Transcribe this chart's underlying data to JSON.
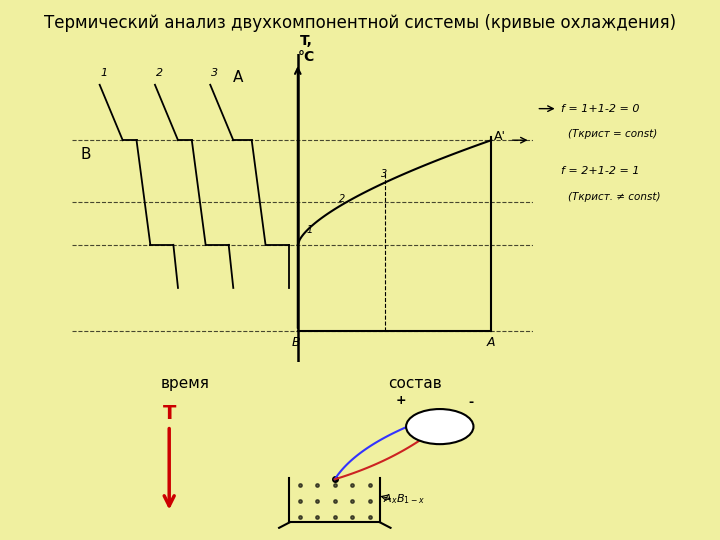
{
  "title": "Термический анализ двухкомпонентной системы (кривые охлаждения)",
  "title_fontsize": 12,
  "bg_outer": "#f0f0a0",
  "bg_title": "#ffffff",
  "bg_main_panel": "#dcdcdc",
  "bg_label_green": "#90ee90",
  "bg_bottom_panel": "#ffffff",
  "label_vremya": "время",
  "label_sostav": "состав",
  "label_A_left": "A",
  "label_B_left": "B",
  "label_T_axis": "T,\n°C",
  "ann1_line1": "f = 1+1-2 = 0",
  "ann1_line2": "(Tкрист = const)",
  "ann2_line1": "f = 2+1-2 = 1",
  "ann2_line2": "(Tкрист. ≠ const)",
  "label_T_arrow": "T",
  "label_AxBx": "AₓB₁₋ₓ",
  "green_border": "#00aa00",
  "title_bg": "#f8f8f8"
}
